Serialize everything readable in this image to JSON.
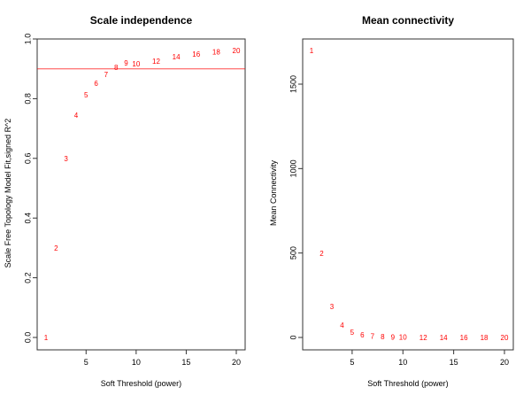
{
  "chart_data": [
    {
      "type": "scatter",
      "title": "Scale independence",
      "xlabel": "Soft Threshold (power)",
      "ylabel": "Scale Free Topology Model Fit,signed R^2",
      "xlim": [
        0.3,
        20.7
      ],
      "ylim": [
        0,
        1.0
      ],
      "xticks": [
        5,
        10,
        15,
        20
      ],
      "yticks": [
        "0.0",
        "0.2",
        "0.4",
        "0.6",
        "0.8",
        "1.0"
      ],
      "x": [
        1,
        2,
        3,
        4,
        5,
        6,
        7,
        8,
        9,
        10,
        12,
        14,
        16,
        18,
        20
      ],
      "y": [
        0.0,
        0.3,
        0.6,
        0.745,
        0.813,
        0.852,
        0.882,
        0.905,
        0.92,
        0.917,
        0.926,
        0.94,
        0.95,
        0.957,
        0.962
      ],
      "point_labels": [
        "1",
        "2",
        "3",
        "4",
        "5",
        "6",
        "7",
        "8",
        "9",
        "10",
        "12",
        "14",
        "16",
        "18",
        "20"
      ],
      "hline": 0.9,
      "marker_color": "#ff0000",
      "hline_color": "#ff0000"
    },
    {
      "type": "scatter",
      "title": "Mean connectivity",
      "xlabel": "Soft Threshold (power)",
      "ylabel": "Mean Connectivity",
      "xlim": [
        0.3,
        20.7
      ],
      "ylim": [
        0,
        1770
      ],
      "xticks": [
        5,
        10,
        15,
        20
      ],
      "yticks": [
        "0",
        "500",
        "1000",
        "1500"
      ],
      "x": [
        1,
        2,
        3,
        4,
        5,
        6,
        7,
        8,
        9,
        10,
        12,
        14,
        16,
        18,
        20
      ],
      "y": [
        1700,
        498,
        184,
        73,
        32,
        16,
        9,
        5,
        3,
        2,
        1,
        0.5,
        0.3,
        0.2,
        0.1
      ],
      "point_labels": [
        "1",
        "2",
        "3",
        "4",
        "5",
        "6",
        "7",
        "8",
        "9",
        "10",
        "12",
        "14",
        "16",
        "18",
        "20"
      ],
      "marker_color": "#ff0000"
    }
  ]
}
